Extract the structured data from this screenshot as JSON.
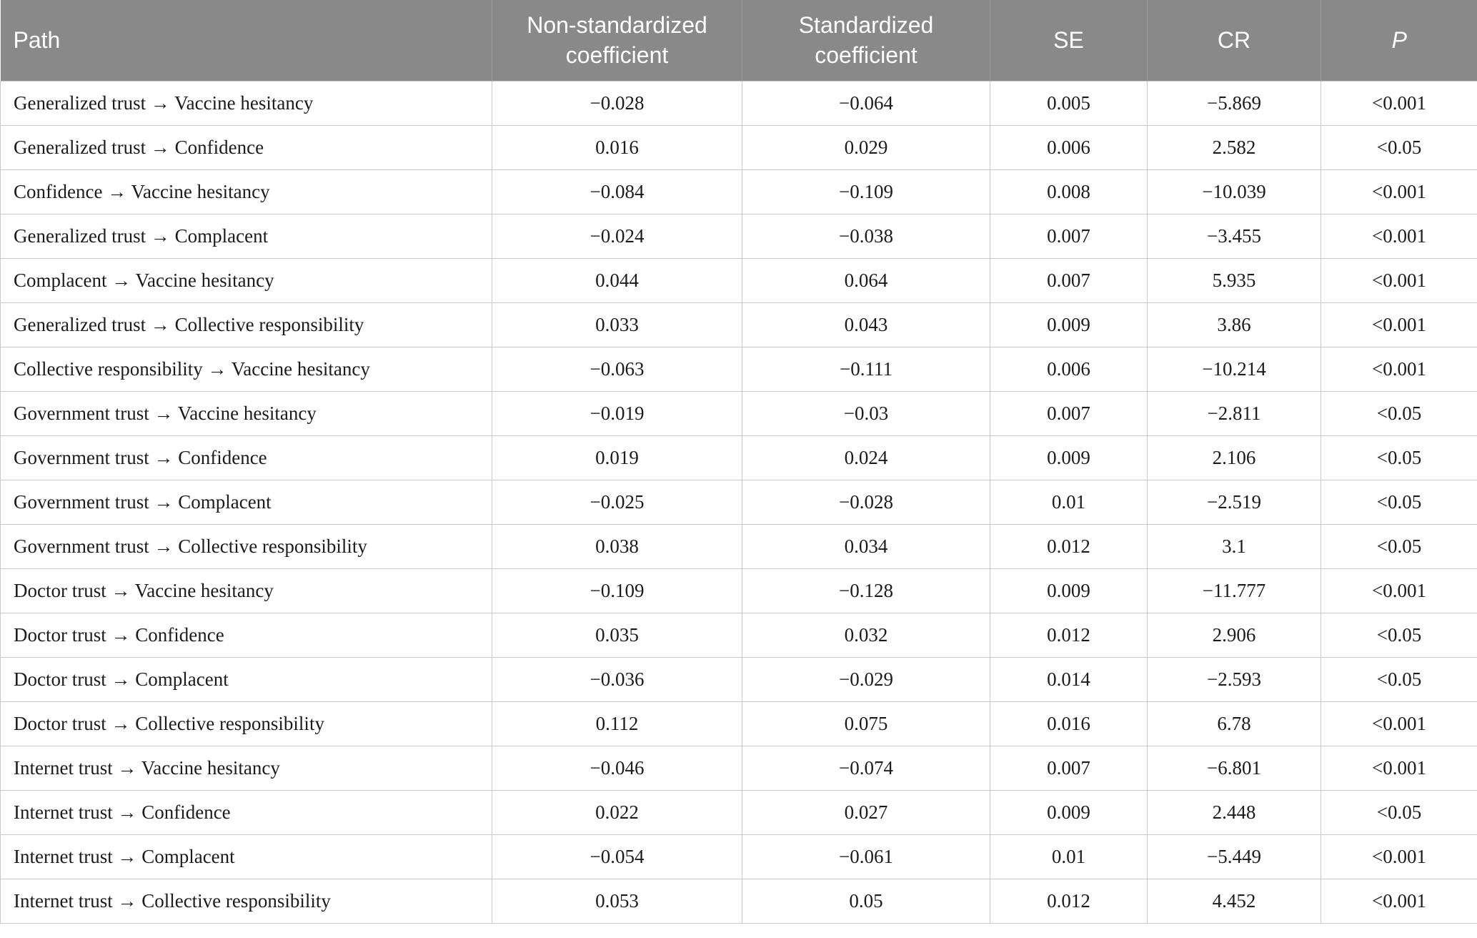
{
  "table": {
    "headers": [
      {
        "key": "path",
        "label": "Path"
      },
      {
        "key": "non_standardized",
        "label": "Non-standardized coefficient"
      },
      {
        "key": "standardized",
        "label": "Standardized coefficient"
      },
      {
        "key": "se",
        "label": "SE"
      },
      {
        "key": "cr",
        "label": "CR"
      },
      {
        "key": "p",
        "label": "P"
      }
    ],
    "rows": [
      {
        "path": "Generalized trust → Vaccine hesitancy",
        "non_standardized": "−0.028",
        "standardized": "−0.064",
        "se": "0.005",
        "cr": "−5.869",
        "p": "<0.001"
      },
      {
        "path": "Generalized trust → Confidence",
        "non_standardized": "0.016",
        "standardized": "0.029",
        "se": "0.006",
        "cr": "2.582",
        "p": "<0.05"
      },
      {
        "path": "Confidence → Vaccine hesitancy",
        "non_standardized": "−0.084",
        "standardized": "−0.109",
        "se": "0.008",
        "cr": "−10.039",
        "p": "<0.001"
      },
      {
        "path": "Generalized trust → Complacent",
        "non_standardized": "−0.024",
        "standardized": "−0.038",
        "se": "0.007",
        "cr": "−3.455",
        "p": "<0.001"
      },
      {
        "path": "Complacent → Vaccine hesitancy",
        "non_standardized": "0.044",
        "standardized": "0.064",
        "se": "0.007",
        "cr": "5.935",
        "p": "<0.001"
      },
      {
        "path": "Generalized trust → Collective responsibility",
        "non_standardized": "0.033",
        "standardized": "0.043",
        "se": "0.009",
        "cr": "3.86",
        "p": "<0.001"
      },
      {
        "path": "Collective responsibility → Vaccine hesitancy",
        "non_standardized": "−0.063",
        "standardized": "−0.111",
        "se": "0.006",
        "cr": "−10.214",
        "p": "<0.001"
      },
      {
        "path": "Government trust → Vaccine hesitancy",
        "non_standardized": "−0.019",
        "standardized": "−0.03",
        "se": "0.007",
        "cr": "−2.811",
        "p": "<0.05"
      },
      {
        "path": "Government trust → Confidence",
        "non_standardized": "0.019",
        "standardized": "0.024",
        "se": "0.009",
        "cr": "2.106",
        "p": "<0.05"
      },
      {
        "path": "Government trust → Complacent",
        "non_standardized": "−0.025",
        "standardized": "−0.028",
        "se": "0.01",
        "cr": "−2.519",
        "p": "<0.05"
      },
      {
        "path": "Government trust → Collective responsibility",
        "non_standardized": "0.038",
        "standardized": "0.034",
        "se": "0.012",
        "cr": "3.1",
        "p": "<0.05"
      },
      {
        "path": "Doctor trust → Vaccine hesitancy",
        "non_standardized": "−0.109",
        "standardized": "−0.128",
        "se": "0.009",
        "cr": "−11.777",
        "p": "<0.001"
      },
      {
        "path": "Doctor trust → Confidence",
        "non_standardized": "0.035",
        "standardized": "0.032",
        "se": "0.012",
        "cr": "2.906",
        "p": "<0.05"
      },
      {
        "path": "Doctor trust → Complacent",
        "non_standardized": "−0.036",
        "standardized": "−0.029",
        "se": "0.014",
        "cr": "−2.593",
        "p": "<0.05"
      },
      {
        "path": "Doctor trust → Collective responsibility",
        "non_standardized": "0.112",
        "standardized": "0.075",
        "se": "0.016",
        "cr": "6.78",
        "p": "<0.001"
      },
      {
        "path": "Internet trust → Vaccine hesitancy",
        "non_standardized": "−0.046",
        "standardized": "−0.074",
        "se": "0.007",
        "cr": "−6.801",
        "p": "<0.001"
      },
      {
        "path": "Internet trust → Confidence",
        "non_standardized": "0.022",
        "standardized": "0.027",
        "se": "0.009",
        "cr": "2.448",
        "p": "<0.05"
      },
      {
        "path": "Internet trust → Complacent",
        "non_standardized": "−0.054",
        "standardized": "−0.061",
        "se": "0.01",
        "cr": "−5.449",
        "p": "<0.001"
      },
      {
        "path": "Internet trust → Collective responsibility",
        "non_standardized": "0.053",
        "standardized": "0.05",
        "se": "0.012",
        "cr": "4.452",
        "p": "<0.001"
      }
    ]
  },
  "colors": {
    "header_bg": "#898989",
    "header_text": "#ffffff",
    "row_border": "#c9c9c9",
    "body_text": "#1b1b1b"
  }
}
